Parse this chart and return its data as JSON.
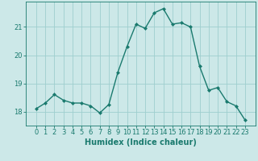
{
  "x": [
    0,
    1,
    2,
    3,
    4,
    5,
    6,
    7,
    8,
    9,
    10,
    11,
    12,
    13,
    14,
    15,
    16,
    17,
    18,
    19,
    20,
    21,
    22,
    23
  ],
  "y": [
    18.1,
    18.3,
    18.6,
    18.4,
    18.3,
    18.3,
    18.2,
    17.95,
    18.25,
    19.4,
    20.3,
    21.1,
    20.95,
    21.5,
    21.65,
    21.1,
    21.15,
    21.0,
    19.6,
    18.75,
    18.85,
    18.35,
    18.2,
    17.7
  ],
  "line_color": "#1a7a6e",
  "marker": "D",
  "markersize": 2.0,
  "linewidth": 1.0,
  "bg_color": "#cce8e8",
  "grid_color": "#9ecece",
  "xlabel": "Humidex (Indice chaleur)",
  "ylabel": "",
  "ylim": [
    17.5,
    21.9
  ],
  "yticks": [
    18,
    19,
    20,
    21
  ],
  "xticks": [
    0,
    1,
    2,
    3,
    4,
    5,
    6,
    7,
    8,
    9,
    10,
    11,
    12,
    13,
    14,
    15,
    16,
    17,
    18,
    19,
    20,
    21,
    22,
    23
  ],
  "tick_color": "#1a7a6e",
  "label_fontsize": 7,
  "tick_fontsize": 6
}
